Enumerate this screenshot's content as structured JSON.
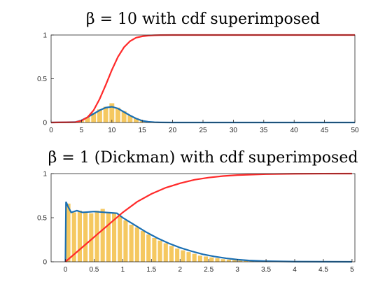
{
  "chart_data": [
    {
      "type": "histogram+line",
      "title": "β = 10 with cdf superimposed",
      "xlim": [
        0,
        50
      ],
      "ylim": [
        0,
        1
      ],
      "xticks": [
        "0",
        "5",
        "10",
        "15",
        "20",
        "25",
        "30",
        "35",
        "40",
        "45",
        "50"
      ],
      "yticks": [
        "0",
        "0.5",
        "1"
      ],
      "grid": false,
      "colors": {
        "histogram": "#f5c860",
        "pdf": "#1a6fb3",
        "cdf": "#ff2a2a"
      },
      "series": [
        {
          "role": "cdf",
          "x": [
            0,
            4,
            5,
            6,
            7,
            8,
            9,
            10,
            11,
            12,
            13,
            14,
            15,
            16,
            17,
            18,
            20,
            50
          ],
          "y": [
            0,
            0.003,
            0.02,
            0.06,
            0.14,
            0.27,
            0.43,
            0.6,
            0.75,
            0.86,
            0.93,
            0.97,
            0.985,
            0.993,
            0.997,
            0.999,
            1,
            1
          ]
        },
        {
          "role": "pdf",
          "x": [
            0,
            4,
            5,
            6,
            7,
            8,
            9,
            10,
            11,
            12,
            13,
            14,
            15,
            16,
            17,
            18,
            20,
            50
          ],
          "y": [
            0,
            0.005,
            0.025,
            0.06,
            0.1,
            0.14,
            0.17,
            0.18,
            0.16,
            0.12,
            0.08,
            0.045,
            0.02,
            0.008,
            0.003,
            0.001,
            0,
            0
          ]
        },
        {
          "role": "histogram",
          "x": [
            4,
            5,
            6,
            7,
            8,
            9,
            10,
            11,
            12,
            13,
            14,
            15,
            16,
            17
          ],
          "y": [
            0.005,
            0.02,
            0.06,
            0.11,
            0.15,
            0.18,
            0.22,
            0.17,
            0.13,
            0.08,
            0.05,
            0.02,
            0.01,
            0.004
          ]
        }
      ]
    },
    {
      "type": "histogram+line",
      "title": "β = 1 (Dickman) with cdf superimposed",
      "xlim": [
        -0.25,
        5.05
      ],
      "ylim": [
        0,
        1
      ],
      "xticks": [
        "0",
        "0.5",
        "1",
        "1.5",
        "2",
        "2.5",
        "3",
        "3.5",
        "4",
        "4.5",
        "5"
      ],
      "yticks": [
        "0",
        "0.5",
        "1"
      ],
      "grid": false,
      "colors": {
        "histogram": "#f5c860",
        "pdf": "#1a6fb3",
        "cdf": "#ff2a2a"
      },
      "series": [
        {
          "role": "cdf",
          "x": [
            0,
            0.25,
            0.5,
            0.75,
            1,
            1.25,
            1.5,
            1.75,
            2,
            2.25,
            2.5,
            2.75,
            3,
            3.5,
            4,
            4.5,
            5
          ],
          "y": [
            0,
            0.14,
            0.28,
            0.42,
            0.56,
            0.68,
            0.77,
            0.84,
            0.89,
            0.93,
            0.955,
            0.972,
            0.983,
            0.994,
            0.998,
            0.9995,
            1
          ]
        },
        {
          "role": "pdf",
          "x": [
            0,
            0.01,
            0.05,
            0.1,
            0.2,
            0.3,
            0.5,
            0.7,
            0.9,
            1,
            1.2,
            1.4,
            1.6,
            1.8,
            2,
            2.2,
            2.4,
            2.6,
            2.8,
            3,
            3.2,
            3.5,
            4,
            5
          ],
          "y": [
            0,
            0.68,
            0.62,
            0.56,
            0.58,
            0.56,
            0.57,
            0.56,
            0.55,
            0.5,
            0.42,
            0.34,
            0.27,
            0.21,
            0.16,
            0.12,
            0.085,
            0.06,
            0.04,
            0.025,
            0.015,
            0.007,
            0.002,
            0
          ]
        },
        {
          "role": "histogram",
          "x": [
            0.05,
            0.15,
            0.25,
            0.35,
            0.45,
            0.55,
            0.65,
            0.75,
            0.85,
            0.95,
            1.05,
            1.15,
            1.25,
            1.35,
            1.45,
            1.55,
            1.65,
            1.75,
            1.85,
            1.95,
            2.05,
            2.15,
            2.25,
            2.35,
            2.45,
            2.55,
            2.65,
            2.75,
            2.85,
            2.95,
            3.05,
            3.15,
            3.25,
            3.35,
            3.45,
            3.55,
            3.65,
            3.75
          ],
          "y": [
            0.66,
            0.56,
            0.58,
            0.57,
            0.55,
            0.58,
            0.6,
            0.55,
            0.56,
            0.52,
            0.47,
            0.42,
            0.39,
            0.35,
            0.31,
            0.27,
            0.24,
            0.21,
            0.18,
            0.15,
            0.13,
            0.11,
            0.09,
            0.07,
            0.06,
            0.05,
            0.04,
            0.03,
            0.025,
            0.02,
            0.015,
            0.012,
            0.009,
            0.007,
            0.005,
            0.004,
            0.003,
            0.002
          ]
        }
      ]
    }
  ]
}
